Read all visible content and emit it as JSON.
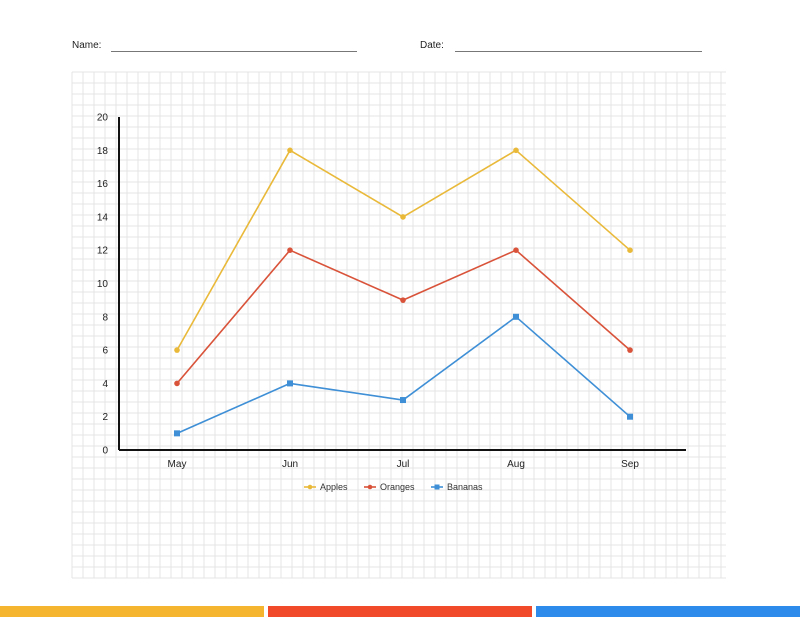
{
  "header": {
    "name_label": "Name:",
    "date_label": "Date:"
  },
  "colors": {
    "apples": "#E9B93A",
    "oranges": "#D9533A",
    "bananas": "#3E8FD6",
    "bar_yellow": "#F6B52E",
    "bar_red": "#F04A2A",
    "bar_blue": "#2D8CEB",
    "grid": "#e4e4e4",
    "axis": "#111111"
  },
  "chart_data": {
    "type": "line",
    "categories": [
      "May",
      "Jun",
      "Jul",
      "Aug",
      "Sep"
    ],
    "series": [
      {
        "name": "Apples",
        "values": [
          6,
          18,
          14,
          18,
          12
        ]
      },
      {
        "name": "Oranges",
        "values": [
          4,
          12,
          9,
          12,
          6
        ]
      },
      {
        "name": "Bananas",
        "values": [
          1,
          4,
          3,
          8,
          2
        ]
      }
    ],
    "y_ticks": [
      0,
      2,
      4,
      6,
      8,
      10,
      12,
      14,
      16,
      18,
      20
    ],
    "ylim": [
      0,
      20
    ],
    "grid": true,
    "legend_position": "bottom-center"
  }
}
